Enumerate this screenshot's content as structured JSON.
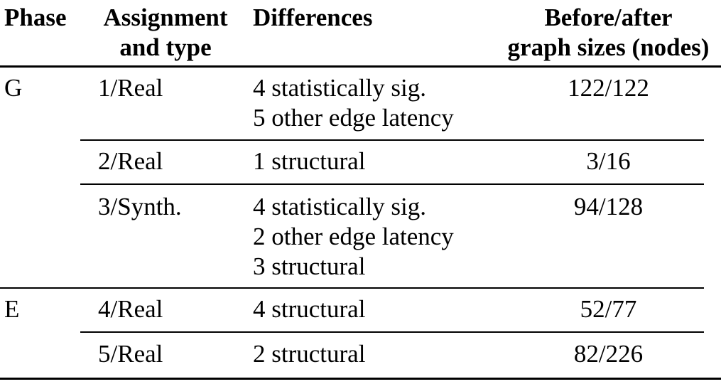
{
  "table": {
    "headers": {
      "phase": "Phase",
      "assignment": [
        "Assignment",
        "and type"
      ],
      "differences": "Differences",
      "sizes": [
        "Before/after",
        "graph sizes (nodes)"
      ]
    },
    "rows": [
      {
        "phase": "G",
        "assignment": "1/Real",
        "differences": [
          "4 statistically sig.",
          "5 other edge latency"
        ],
        "sizes": "122/122"
      },
      {
        "phase": "",
        "assignment": "2/Real",
        "differences": [
          "1 structural"
        ],
        "sizes": "3/16"
      },
      {
        "phase": "",
        "assignment": "3/Synth.",
        "differences": [
          "4 statistically sig.",
          "2 other edge latency",
          "3 structural"
        ],
        "sizes": "94/128"
      },
      {
        "phase": "E",
        "assignment": "4/Real",
        "differences": [
          "4 structural"
        ],
        "sizes": "52/77"
      },
      {
        "phase": "",
        "assignment": "5/Real",
        "differences": [
          "2 structural"
        ],
        "sizes": "82/226"
      }
    ]
  }
}
